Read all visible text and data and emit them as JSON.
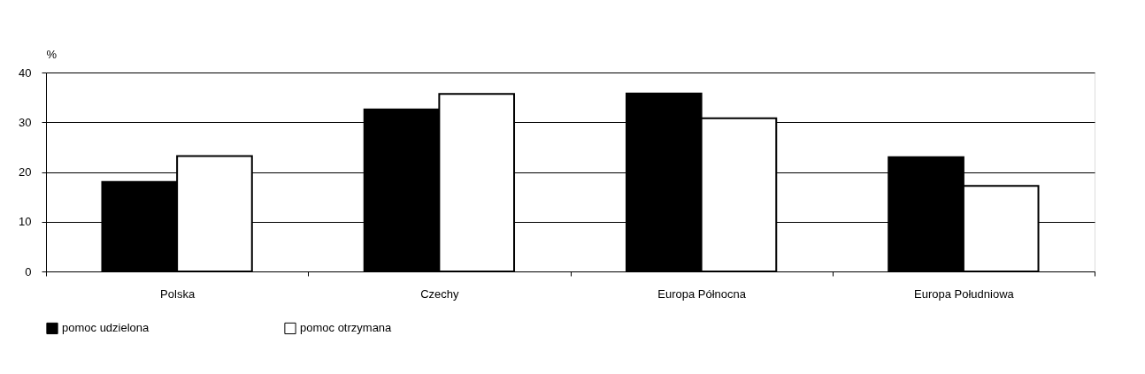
{
  "chart_data": {
    "type": "bar",
    "ylabel": "%",
    "categories": [
      "Polska",
      "Czechy",
      "Europa Północna",
      "Europa Południowa"
    ],
    "series": [
      {
        "name": "pomoc udzielona",
        "color": "#000000",
        "values": [
          18,
          32.6,
          35.8,
          23
        ]
      },
      {
        "name": "pomoc otrzymana",
        "color": "#ffffff",
        "values": [
          23.2,
          35.7,
          30.8,
          17.2
        ]
      }
    ],
    "ylim": [
      0,
      40
    ],
    "yticks": [
      0,
      10,
      20,
      30,
      40
    ],
    "grid": "y",
    "legend": "bottom"
  }
}
